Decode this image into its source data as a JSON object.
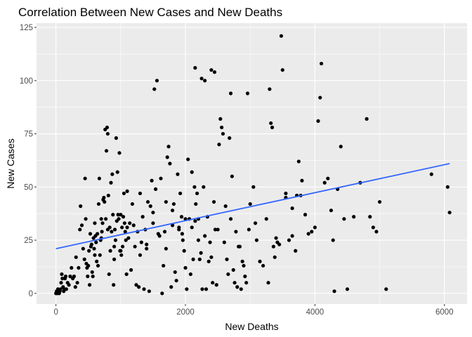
{
  "chart_data": {
    "type": "scatter",
    "title": "Correlation Between New Cases and New Deaths",
    "xlabel": "New Deaths",
    "ylabel": "New Cases",
    "xlim": [
      -300,
      6350
    ],
    "ylim": [
      -5,
      127
    ],
    "x_ticks": [
      0,
      2000,
      4000,
      6000
    ],
    "y_ticks": [
      0,
      25,
      50,
      75,
      100,
      125
    ],
    "x_tick_labels": [
      "0",
      "2000",
      "4000",
      "6000"
    ],
    "y_tick_labels": [
      "0",
      "25",
      "50",
      "75",
      "100",
      "125"
    ],
    "grid": true,
    "panel_background": "#ebebeb",
    "grid_color": "#ffffff",
    "point_color": "#000000",
    "trend_line": {
      "x": [
        0,
        6080
      ],
      "y": [
        21,
        61
      ],
      "color": "#3366ff"
    },
    "points": [
      [
        0,
        0
      ],
      [
        10,
        1
      ],
      [
        20,
        0
      ],
      [
        30,
        2
      ],
      [
        40,
        1
      ],
      [
        50,
        0
      ],
      [
        60,
        1
      ],
      [
        70,
        2
      ],
      [
        80,
        5
      ],
      [
        90,
        9
      ],
      [
        100,
        7
      ],
      [
        110,
        3
      ],
      [
        120,
        1
      ],
      [
        130,
        2
      ],
      [
        140,
        7
      ],
      [
        150,
        8
      ],
      [
        160,
        2
      ],
      [
        180,
        5
      ],
      [
        200,
        4
      ],
      [
        220,
        8
      ],
      [
        240,
        12
      ],
      [
        260,
        7
      ],
      [
        280,
        8
      ],
      [
        300,
        3
      ],
      [
        310,
        17
      ],
      [
        330,
        5
      ],
      [
        350,
        12
      ],
      [
        370,
        30
      ],
      [
        380,
        41
      ],
      [
        400,
        32
      ],
      [
        420,
        21
      ],
      [
        440,
        16
      ],
      [
        450,
        54
      ],
      [
        460,
        35
      ],
      [
        470,
        14
      ],
      [
        480,
        12
      ],
      [
        490,
        8
      ],
      [
        500,
        13
      ],
      [
        510,
        20
      ],
      [
        520,
        4
      ],
      [
        530,
        28
      ],
      [
        540,
        22
      ],
      [
        550,
        23
      ],
      [
        560,
        10
      ],
      [
        570,
        8
      ],
      [
        580,
        26
      ],
      [
        590,
        21
      ],
      [
        600,
        33
      ],
      [
        610,
        27
      ],
      [
        620,
        24
      ],
      [
        630,
        15
      ],
      [
        640,
        28
      ],
      [
        650,
        13
      ],
      [
        660,
        42
      ],
      [
        670,
        54
      ],
      [
        680,
        18
      ],
      [
        690,
        25
      ],
      [
        700,
        35
      ],
      [
        710,
        29
      ],
      [
        720,
        33
      ],
      [
        730,
        44
      ],
      [
        740,
        45
      ],
      [
        750,
        43
      ],
      [
        760,
        77
      ],
      [
        770,
        35
      ],
      [
        780,
        67
      ],
      [
        790,
        78
      ],
      [
        800,
        75
      ],
      [
        810,
        46
      ],
      [
        820,
        9
      ],
      [
        830,
        31
      ],
      [
        840,
        20
      ],
      [
        850,
        52
      ],
      [
        860,
        29
      ],
      [
        870,
        56
      ],
      [
        880,
        37
      ],
      [
        890,
        4
      ],
      [
        900,
        16
      ],
      [
        910,
        30
      ],
      [
        920,
        25
      ],
      [
        930,
        73
      ],
      [
        940,
        34
      ],
      [
        950,
        57
      ],
      [
        960,
        37
      ],
      [
        970,
        35
      ],
      [
        980,
        66
      ],
      [
        990,
        20
      ],
      [
        1000,
        37
      ],
      [
        1010,
        18
      ],
      [
        1020,
        31
      ],
      [
        1030,
        22
      ],
      [
        1040,
        36
      ],
      [
        1050,
        47
      ],
      [
        1060,
        33
      ],
      [
        1070,
        29
      ],
      [
        1080,
        25
      ],
      [
        1090,
        9
      ],
      [
        1100,
        48
      ],
      [
        1120,
        26
      ],
      [
        1140,
        33
      ],
      [
        1160,
        11
      ],
      [
        1180,
        42
      ],
      [
        1200,
        32
      ],
      [
        1220,
        22
      ],
      [
        1240,
        4
      ],
      [
        1260,
        29
      ],
      [
        1280,
        3
      ],
      [
        1300,
        47
      ],
      [
        1320,
        24
      ],
      [
        1340,
        36
      ],
      [
        1360,
        2
      ],
      [
        1380,
        30
      ],
      [
        1400,
        21
      ],
      [
        1420,
        43
      ],
      [
        1440,
        1
      ],
      [
        1460,
        41
      ],
      [
        1480,
        53
      ],
      [
        1500,
        33
      ],
      [
        1520,
        96
      ],
      [
        1540,
        49
      ],
      [
        1560,
        100
      ],
      [
        1580,
        28
      ],
      [
        1600,
        27
      ],
      [
        1620,
        54
      ],
      [
        1640,
        0
      ],
      [
        1660,
        13
      ],
      [
        1680,
        29
      ],
      [
        1700,
        43
      ],
      [
        1720,
        64
      ],
      [
        1740,
        69
      ],
      [
        1760,
        61
      ],
      [
        1780,
        3
      ],
      [
        1800,
        32
      ],
      [
        1820,
        42
      ],
      [
        1840,
        10
      ],
      [
        1860,
        6
      ],
      [
        1880,
        56
      ],
      [
        1900,
        31
      ],
      [
        1920,
        47
      ],
      [
        1940,
        36
      ],
      [
        1960,
        25
      ],
      [
        1980,
        20
      ],
      [
        2000,
        12
      ],
      [
        2020,
        2
      ],
      [
        2040,
        63
      ],
      [
        2060,
        35
      ],
      [
        2080,
        9
      ],
      [
        2100,
        57
      ],
      [
        2120,
        16
      ],
      [
        2140,
        50
      ],
      [
        2160,
        42
      ],
      [
        2180,
        47
      ],
      [
        2200,
        25
      ],
      [
        2220,
        16
      ],
      [
        2240,
        19
      ],
      [
        2260,
        2
      ],
      [
        2280,
        50
      ],
      [
        2300,
        27
      ],
      [
        2320,
        2
      ],
      [
        2340,
        36
      ],
      [
        2360,
        15
      ],
      [
        2380,
        24
      ],
      [
        2400,
        17
      ],
      [
        2420,
        5
      ],
      [
        2440,
        43
      ],
      [
        2460,
        30
      ],
      [
        2480,
        4
      ],
      [
        2500,
        30
      ],
      [
        2520,
        70
      ],
      [
        2540,
        82
      ],
      [
        2560,
        78
      ],
      [
        2580,
        75
      ],
      [
        2600,
        24
      ],
      [
        2620,
        41
      ],
      [
        2640,
        16
      ],
      [
        2660,
        9
      ],
      [
        2680,
        73
      ],
      [
        2700,
        35
      ],
      [
        2720,
        55
      ],
      [
        2740,
        11
      ],
      [
        2760,
        5
      ],
      [
        2780,
        29
      ],
      [
        2800,
        3
      ],
      [
        2820,
        22
      ],
      [
        2840,
        22
      ],
      [
        2860,
        2
      ],
      [
        2880,
        15
      ],
      [
        2900,
        13
      ],
      [
        2920,
        8
      ],
      [
        2940,
        5
      ],
      [
        2960,
        94
      ],
      [
        2980,
        30
      ],
      [
        3000,
        42
      ],
      [
        3050,
        50
      ],
      [
        3080,
        33
      ],
      [
        3100,
        25
      ],
      [
        3150,
        15
      ],
      [
        3200,
        13
      ],
      [
        3250,
        35
      ],
      [
        3280,
        5
      ],
      [
        3300,
        96
      ],
      [
        3320,
        80
      ],
      [
        3340,
        78
      ],
      [
        3360,
        22
      ],
      [
        3380,
        17
      ],
      [
        3400,
        26
      ],
      [
        3420,
        24
      ],
      [
        3450,
        23
      ],
      [
        3480,
        121
      ],
      [
        3500,
        105
      ],
      [
        3550,
        45
      ],
      [
        3600,
        25
      ],
      [
        3650,
        27
      ],
      [
        3700,
        20
      ],
      [
        3720,
        46
      ],
      [
        3750,
        62
      ],
      [
        3780,
        46
      ],
      [
        3800,
        53
      ],
      [
        3850,
        37
      ],
      [
        3900,
        28
      ],
      [
        3950,
        29
      ],
      [
        4000,
        31
      ],
      [
        4050,
        81
      ],
      [
        4080,
        92
      ],
      [
        4150,
        52
      ],
      [
        4200,
        54
      ],
      [
        4250,
        39
      ],
      [
        4280,
        25
      ],
      [
        4300,
        1
      ],
      [
        4350,
        49
      ],
      [
        4400,
        69
      ],
      [
        4450,
        35
      ],
      [
        4500,
        2
      ],
      [
        4600,
        36
      ],
      [
        4700,
        52
      ],
      [
        4800,
        82
      ],
      [
        4850,
        36
      ],
      [
        4900,
        31
      ],
      [
        4950,
        29
      ],
      [
        5000,
        43
      ],
      [
        5100,
        2
      ],
      [
        5800,
        56
      ],
      [
        6050,
        50
      ],
      [
        6080,
        38
      ],
      [
        1900,
        30
      ],
      [
        2000,
        35
      ],
      [
        1500,
        38
      ],
      [
        1400,
        23
      ],
      [
        1100,
        31
      ],
      [
        900,
        22
      ],
      [
        700,
        26
      ],
      [
        600,
        18
      ],
      [
        2200,
        35
      ],
      [
        2100,
        31
      ],
      [
        1800,
        39
      ],
      [
        1700,
        21
      ],
      [
        1300,
        18
      ],
      [
        1000,
        20
      ],
      [
        800,
        30
      ],
      [
        1950,
        28
      ],
      [
        2150,
        34
      ],
      [
        2250,
        101
      ],
      [
        2300,
        100
      ],
      [
        2400,
        105
      ],
      [
        2450,
        104
      ],
      [
        2700,
        94
      ],
      [
        2150,
        106
      ],
      [
        4100,
        108
      ],
      [
        3650,
        40
      ],
      [
        3550,
        47
      ]
    ]
  }
}
